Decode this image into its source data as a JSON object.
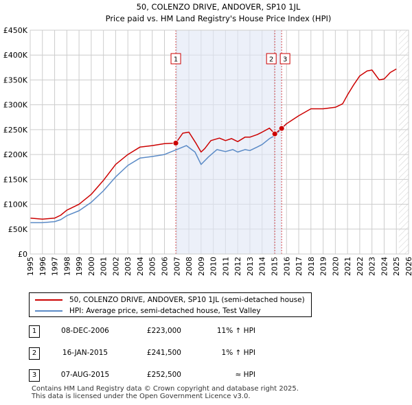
{
  "chart_data": {
    "type": "line",
    "title": "50, COLENZO DRIVE, ANDOVER, SP10 1JL",
    "subtitle": "Price paid vs. HM Land Registry's House Price Index (HPI)",
    "x_range": [
      1995,
      2026
    ],
    "ylim": [
      0,
      450000
    ],
    "x_tick_labels": [
      "1995",
      "1996",
      "1997",
      "1998",
      "1999",
      "2000",
      "2001",
      "2002",
      "2003",
      "2004",
      "2005",
      "2006",
      "2007",
      "2008",
      "2009",
      "2010",
      "2011",
      "2012",
      "2013",
      "2014",
      "2015",
      "2016",
      "2017",
      "2018",
      "2019",
      "2020",
      "2021",
      "2022",
      "2023",
      "2024",
      "2025",
      "2026"
    ],
    "y_ticks": [
      0,
      50000,
      100000,
      150000,
      200000,
      250000,
      300000,
      350000,
      400000,
      450000
    ],
    "y_tick_labels": [
      "£0",
      "£50K",
      "£100K",
      "£150K",
      "£200K",
      "£250K",
      "£300K",
      "£350K",
      "£400K",
      "£450K"
    ],
    "hatch_from": 2025.2,
    "series": [
      {
        "name": "50, COLENZO DRIVE, ANDOVER, SP10 1JL (semi-detached house)",
        "color": "#cc0000",
        "points": [
          [
            1995.0,
            72000
          ],
          [
            1996.0,
            70000
          ],
          [
            1997.0,
            72000
          ],
          [
            1997.5,
            78000
          ],
          [
            1998.0,
            88000
          ],
          [
            1999.0,
            100000
          ],
          [
            2000.0,
            120000
          ],
          [
            2001.0,
            148000
          ],
          [
            2002.0,
            180000
          ],
          [
            2003.0,
            200000
          ],
          [
            2004.0,
            215000
          ],
          [
            2005.0,
            218000
          ],
          [
            2006.0,
            222000
          ],
          [
            2006.93,
            223000
          ],
          [
            2007.5,
            243000
          ],
          [
            2008.0,
            245000
          ],
          [
            2008.6,
            222000
          ],
          [
            2009.0,
            205000
          ],
          [
            2009.3,
            212000
          ],
          [
            2009.8,
            228000
          ],
          [
            2010.5,
            233000
          ],
          [
            2011.0,
            228000
          ],
          [
            2011.5,
            232000
          ],
          [
            2012.0,
            226000
          ],
          [
            2012.6,
            235000
          ],
          [
            2013.0,
            235000
          ],
          [
            2013.6,
            240000
          ],
          [
            2014.0,
            245000
          ],
          [
            2014.6,
            253000
          ],
          [
            2015.04,
            241500
          ],
          [
            2015.6,
            252500
          ],
          [
            2016.0,
            262000
          ],
          [
            2017.0,
            278000
          ],
          [
            2018.0,
            292000
          ],
          [
            2019.0,
            292000
          ],
          [
            2020.0,
            295000
          ],
          [
            2020.6,
            302000
          ],
          [
            2021.0,
            320000
          ],
          [
            2021.5,
            340000
          ],
          [
            2022.0,
            358000
          ],
          [
            2022.6,
            368000
          ],
          [
            2023.0,
            370000
          ],
          [
            2023.6,
            350000
          ],
          [
            2024.0,
            352000
          ],
          [
            2024.5,
            365000
          ],
          [
            2025.0,
            372000
          ]
        ]
      },
      {
        "name": "HPI: Average price, semi-detached house, Test Valley",
        "color": "#5a8ac6",
        "points": [
          [
            1995.0,
            63000
          ],
          [
            1996.0,
            63000
          ],
          [
            1997.0,
            65000
          ],
          [
            1997.5,
            69000
          ],
          [
            1998.0,
            77000
          ],
          [
            1999.0,
            87000
          ],
          [
            2000.0,
            104000
          ],
          [
            2001.0,
            127000
          ],
          [
            2002.0,
            155000
          ],
          [
            2003.0,
            178000
          ],
          [
            2004.0,
            193000
          ],
          [
            2005.0,
            196000
          ],
          [
            2006.0,
            200000
          ],
          [
            2007.0,
            210000
          ],
          [
            2007.8,
            218000
          ],
          [
            2008.5,
            205000
          ],
          [
            2009.0,
            180000
          ],
          [
            2009.6,
            195000
          ],
          [
            2010.3,
            210000
          ],
          [
            2011.0,
            206000
          ],
          [
            2011.6,
            210000
          ],
          [
            2012.0,
            205000
          ],
          [
            2012.6,
            210000
          ],
          [
            2013.0,
            208000
          ],
          [
            2013.6,
            215000
          ],
          [
            2014.0,
            220000
          ],
          [
            2014.6,
            232000
          ],
          [
            2015.04,
            238000
          ],
          [
            2015.6,
            252500
          ],
          [
            2016.0,
            262000
          ]
        ]
      }
    ],
    "markers": [
      {
        "label": "1",
        "x": 2006.93,
        "y": 223000
      },
      {
        "label": "2",
        "x": 2015.04,
        "y": 241500
      },
      {
        "label": "3",
        "x": 2015.6,
        "y": 252500
      }
    ],
    "legend": [
      {
        "label": "50, COLENZO DRIVE, ANDOVER, SP10 1JL (semi-detached house)",
        "color": "#cc0000"
      },
      {
        "label": "HPI: Average price, semi-detached house, Test Valley",
        "color": "#5a8ac6"
      }
    ]
  },
  "sales": [
    {
      "num": "1",
      "date": "08-DEC-2006",
      "price": "£223,000",
      "rel": "11% ↑ HPI"
    },
    {
      "num": "2",
      "date": "16-JAN-2015",
      "price": "£241,500",
      "rel": "1% ↑ HPI"
    },
    {
      "num": "3",
      "date": "07-AUG-2015",
      "price": "£252,500",
      "rel": "≈ HPI"
    }
  ],
  "footer": {
    "line1": "Contains HM Land Registry data © Crown copyright and database right 2025.",
    "line2": "This data is licensed under the Open Government Licence v3.0."
  }
}
